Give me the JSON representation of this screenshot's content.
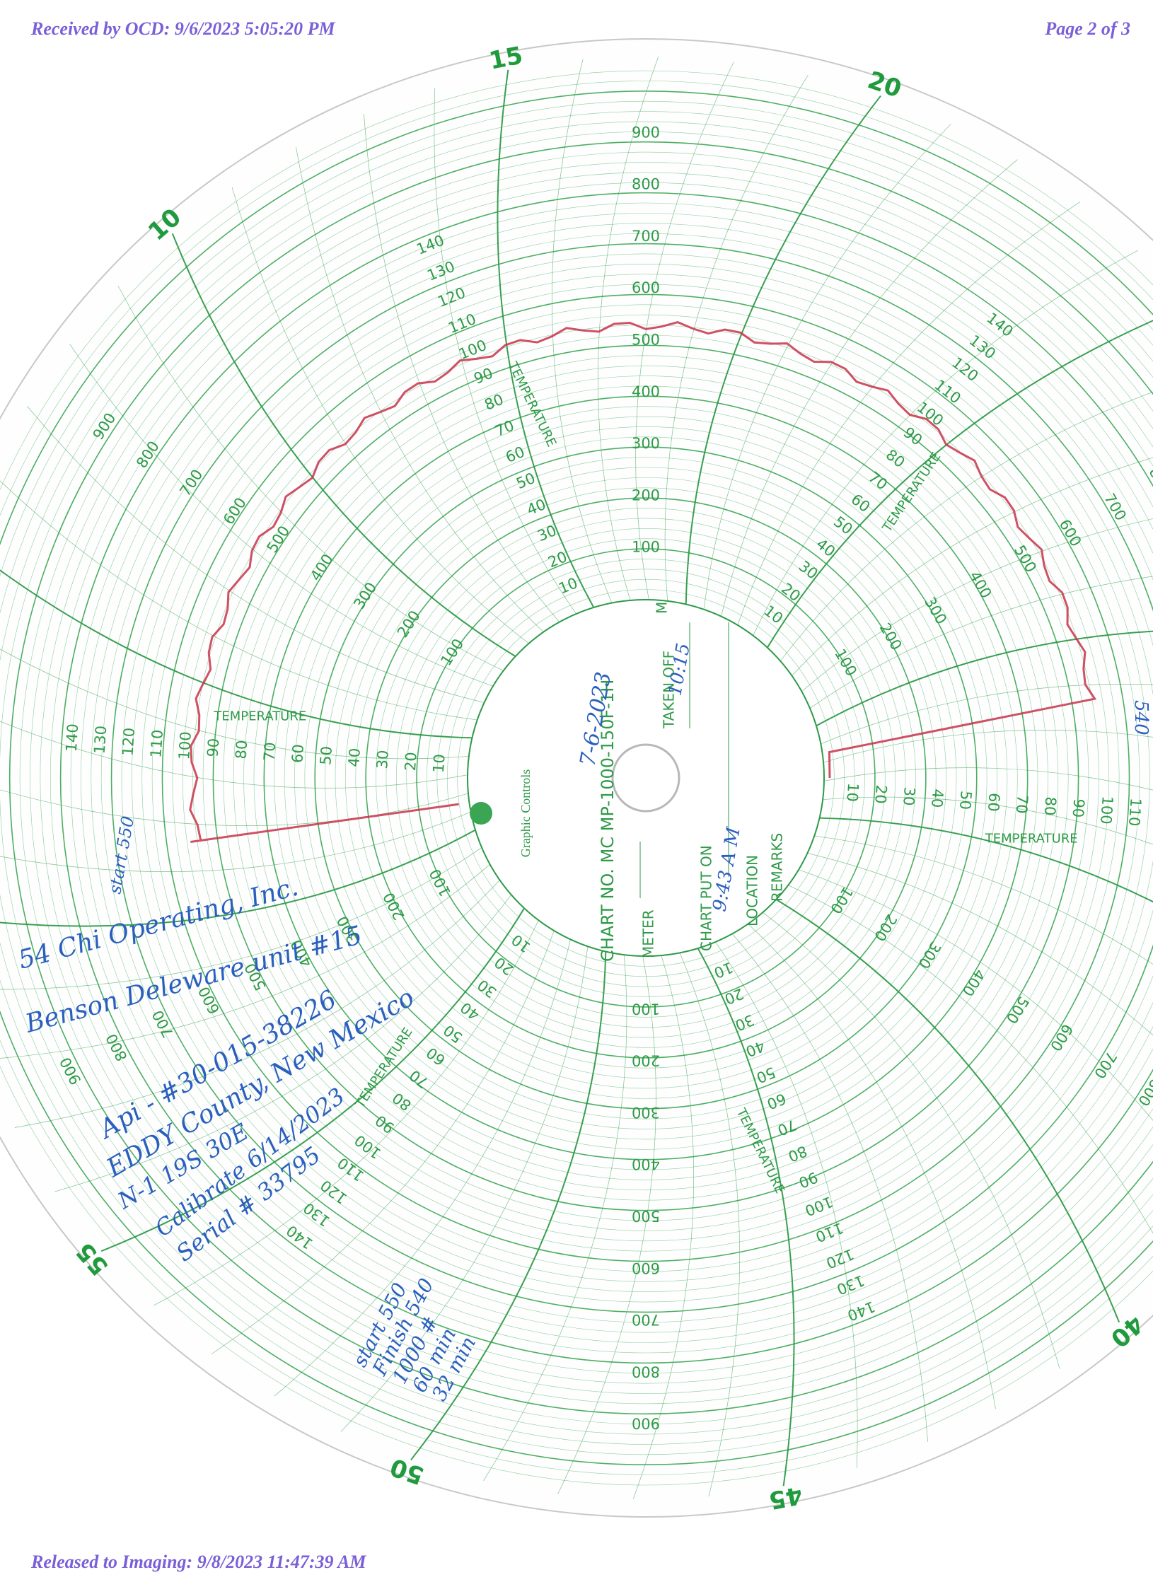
{
  "header": {
    "received": "Received by OCD: 9/6/2023 5:05:20 PM",
    "page": "Page 2 of 3"
  },
  "footer": {
    "released": "Released to Imaging: 9/8/2023 11:47:39 AM"
  },
  "chart_disk": {
    "brand": "Graphic Controls",
    "chart_number": "CHART NO. MC MP-1000-150F-1H",
    "fields": {
      "meter": "METER",
      "chart_put_on": "CHART PUT ON",
      "taken_off": "TAKEN OFF",
      "m": "M",
      "location": "LOCATION",
      "remarks": "REMARKS"
    },
    "scale_title": "TEMPERATURE",
    "time_marks": [
      "10",
      "15",
      "20",
      "40",
      "45",
      "50",
      "55"
    ],
    "pressure_scale": [
      100,
      200,
      300,
      400,
      500,
      600,
      700,
      800,
      900
    ],
    "temperature_scale": [
      10,
      20,
      30,
      40,
      50,
      60,
      70,
      80,
      90,
      100,
      110,
      120,
      130,
      140
    ]
  },
  "handwriting": {
    "date": "7-6-2023",
    "put_on_time": "9:43 A M",
    "taken_off_time": "10:15",
    "notes": [
      "54 Chi Operating, Inc.",
      "Benson Deleware unit #15",
      "Api - #30-015-38226",
      "EDDY County, New Mexico",
      "N-1 19S 30E",
      "Calibrate 6/14/2023",
      "Serial # 33795"
    ],
    "readings": [
      "start 550",
      "Finish 540",
      "1000 #",
      "60 min",
      "32 min"
    ],
    "left_margin": "start 550",
    "right_margin": "540"
  }
}
